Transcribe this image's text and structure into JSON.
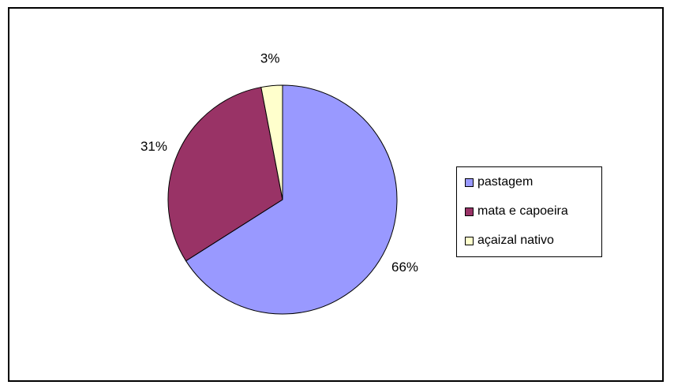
{
  "chart_data": {
    "type": "pie",
    "categories": [
      "pastagem",
      "mata e capoeira",
      "açaizal nativo"
    ],
    "values": [
      66,
      31,
      3
    ],
    "data_labels": [
      "66%",
      "31%",
      "3%"
    ],
    "colors": [
      "#9999FF",
      "#993366",
      "#FFFFCC"
    ],
    "start_angle_deg": 0,
    "direction": "clockwise",
    "legend_position": "right",
    "title": ""
  },
  "legend": {
    "items": [
      {
        "label": "pastagem",
        "color": "#9999FF"
      },
      {
        "label": "mata e capoeira",
        "color": "#993366"
      },
      {
        "label": "açaizal nativo",
        "color": "#FFFFCC"
      }
    ]
  }
}
